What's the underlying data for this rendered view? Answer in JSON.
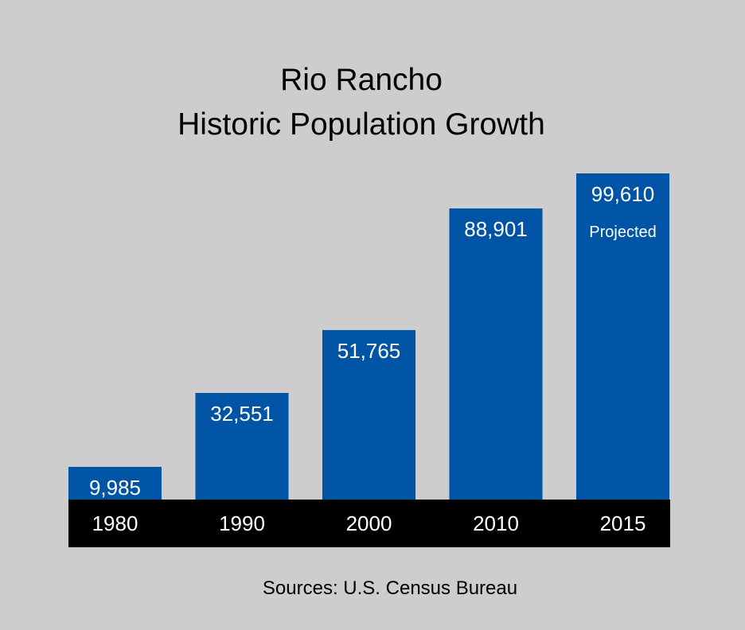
{
  "title_lines": [
    "Rio Rancho",
    "Historic Population Growth"
  ],
  "source": "Sources: U.S. Census Bureau",
  "colors": {
    "background": "#cdcdcd",
    "bar": "#0054a6",
    "axis_band": "#000000",
    "bar_label": "#ffffff",
    "text": "#000000"
  },
  "chart_data": {
    "type": "bar",
    "title": "Rio Rancho Historic Population Growth",
    "categories": [
      "1980",
      "1990",
      "2000",
      "2010",
      "2015"
    ],
    "values": [
      9985,
      32551,
      51765,
      88901,
      99610
    ],
    "value_labels": [
      "9,985",
      "32,551",
      "51,765",
      "88,901",
      "99,610"
    ],
    "annotations": [
      "",
      "",
      "",
      "",
      "Projected"
    ],
    "xlabel": "",
    "ylabel": "",
    "ylim": [
      0,
      101000
    ],
    "grid": false,
    "legend": "none"
  }
}
